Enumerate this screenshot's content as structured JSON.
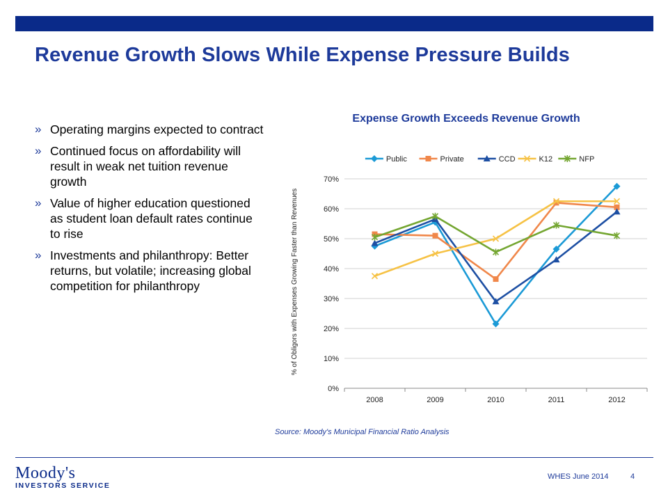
{
  "slide": {
    "title": "Revenue Growth Slows While Expense Pressure Builds",
    "bullets": [
      "Operating margins expected to contract",
      "Continued focus on affordability will result in weak net tuition revenue growth",
      "Value of higher education questioned as student loan default rates continue to rise",
      "Investments and philanthropy: Better returns, but volatile; increasing global competition for philanthropy"
    ],
    "bullet_marker": "»",
    "source": "Source: Moody's Municipal Financial Ratio Analysis",
    "footer_text": "WHES June 2014",
    "page_number": "4",
    "logo_name": "Moody's",
    "logo_subtitle": "INVESTORS SERVICE"
  },
  "colors": {
    "brand_navy": "#0a2a89",
    "title_blue": "#1d3a9a"
  },
  "chart_data": {
    "type": "line",
    "title": "Expense Growth Exceeds Revenue Growth",
    "xlabel": "",
    "ylabel": "% of Obligors with Expenses Growing Faster than Revenues",
    "categories": [
      "2008",
      "2009",
      "2010",
      "2011",
      "2012"
    ],
    "ylim": [
      0,
      0.7
    ],
    "yticks": [
      "0%",
      "10%",
      "20%",
      "30%",
      "40%",
      "50%",
      "60%",
      "70%"
    ],
    "grid": "horizontal",
    "legend": "top",
    "series": [
      {
        "name": "Public",
        "color": "#1b9ad6",
        "marker": "diamond",
        "values": [
          0.475,
          0.555,
          0.215,
          0.465,
          0.675
        ]
      },
      {
        "name": "Private",
        "color": "#f0874a",
        "marker": "square",
        "values": [
          0.515,
          0.51,
          0.365,
          0.62,
          0.605
        ]
      },
      {
        "name": "CCD",
        "color": "#1d4fa3",
        "marker": "triangle",
        "values": [
          0.485,
          0.565,
          0.29,
          0.43,
          0.59
        ]
      },
      {
        "name": "K12",
        "color": "#f6c245",
        "marker": "x",
        "values": [
          0.375,
          0.45,
          0.5,
          0.625,
          0.625
        ]
      },
      {
        "name": "NFP",
        "color": "#74a631",
        "marker": "star",
        "values": [
          0.505,
          0.575,
          0.455,
          0.545,
          0.51
        ]
      }
    ]
  }
}
